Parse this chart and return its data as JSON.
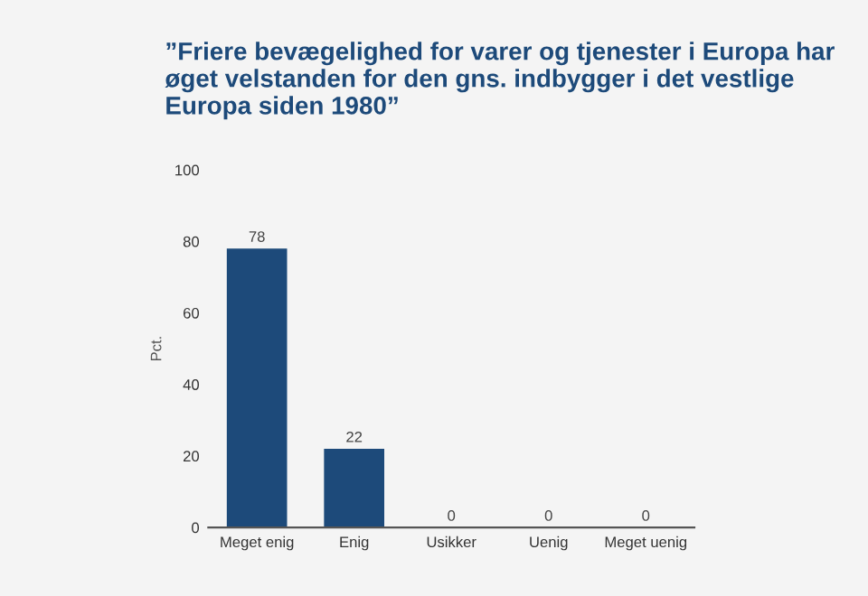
{
  "chart_data": {
    "type": "bar",
    "title": "”Friere bevægelighed for varer og tjenester i Europa har øget velstanden for den gns. indbygger i det vestlige Europa siden 1980”",
    "ylabel": "Pct.",
    "categories": [
      "Meget enig",
      "Enig",
      "Usikker",
      "Uenig",
      "Meget uenig"
    ],
    "values": [
      78,
      22,
      0,
      0,
      0
    ],
    "color": "#1d4a7a",
    "ylim": [
      0,
      100
    ],
    "yticks": [
      0,
      20,
      40,
      60,
      80,
      100
    ],
    "grid": false,
    "data_labels": true
  }
}
